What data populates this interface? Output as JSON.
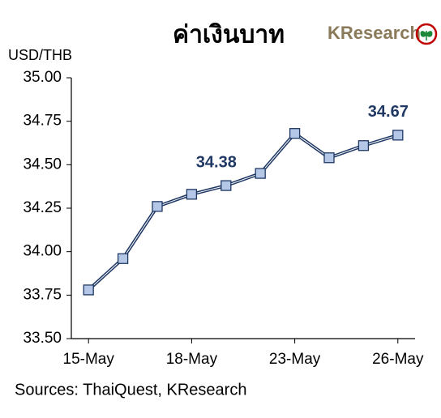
{
  "chart_data": {
    "type": "line",
    "title": "ค่าเงินบาท",
    "logo": "KResearch",
    "y_label": "USD/THB",
    "source": "Sources: ThaiQuest, KResearch",
    "categories": [
      "15-May",
      null,
      null,
      "18-May",
      null,
      null,
      "23-May",
      null,
      null,
      "26-May"
    ],
    "series": [
      {
        "name": "USD/THB",
        "color": "#1f3864",
        "marker_color": "#b4c7e7",
        "values": [
          33.78,
          33.96,
          34.26,
          34.33,
          34.38,
          34.45,
          34.68,
          34.54,
          34.61,
          34.67
        ]
      }
    ],
    "labeled_points": [
      4,
      9
    ],
    "ylim": [
      33.5,
      35.0
    ],
    "yticks": [
      {
        "value": 33.5,
        "label": "33.50"
      },
      {
        "value": 33.75,
        "label": "33.75"
      },
      {
        "value": 34.0,
        "label": "34.00"
      },
      {
        "value": 34.25,
        "label": "34.25"
      },
      {
        "value": 34.5,
        "label": "34.50"
      },
      {
        "value": 34.75,
        "label": "34.75"
      },
      {
        "value": 35.0,
        "label": "35.00"
      }
    ],
    "grid": false
  }
}
